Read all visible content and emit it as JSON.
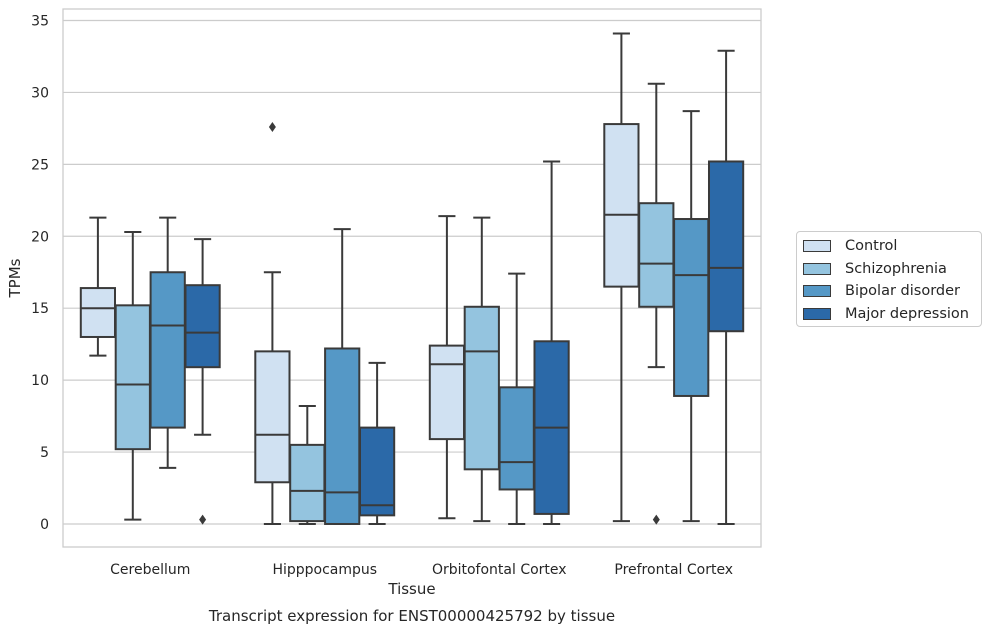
{
  "chart_data": {
    "type": "boxplot",
    "title": "Transcript expression for ENST00000425792 by tissue",
    "xlabel": "Tissue",
    "ylabel": "TPMs",
    "ylim": [
      -1.6,
      35.8
    ],
    "yticks": [
      0,
      5,
      10,
      15,
      20,
      25,
      30,
      35
    ],
    "grid": "horizontal",
    "legend_position": "right",
    "categories": [
      "Cerebellum",
      "Hipppocampus",
      "Orbitofontal Cortex",
      "Prefrontal Cortex"
    ],
    "series": [
      {
        "name": "Control",
        "color": "#d0e1f2",
        "boxes": [
          {
            "whislo": 11.7,
            "q1": 13.0,
            "med": 15.0,
            "q3": 16.4,
            "whishi": 21.3,
            "fliers": []
          },
          {
            "whislo": 0.0,
            "q1": 2.9,
            "med": 6.2,
            "q3": 12.0,
            "whishi": 17.5,
            "fliers": [
              27.6
            ]
          },
          {
            "whislo": 0.4,
            "q1": 5.9,
            "med": 11.1,
            "q3": 12.4,
            "whishi": 21.4,
            "fliers": []
          },
          {
            "whislo": 0.2,
            "q1": 16.5,
            "med": 21.5,
            "q3": 27.8,
            "whishi": 34.1,
            "fliers": []
          }
        ]
      },
      {
        "name": "Schizophrenia",
        "color": "#94c4df",
        "boxes": [
          {
            "whislo": 0.3,
            "q1": 5.2,
            "med": 9.7,
            "q3": 15.2,
            "whishi": 20.3,
            "fliers": []
          },
          {
            "whislo": 0.0,
            "q1": 0.2,
            "med": 2.3,
            "q3": 5.5,
            "whishi": 8.2,
            "fliers": []
          },
          {
            "whislo": 0.2,
            "q1": 3.8,
            "med": 12.0,
            "q3": 15.1,
            "whishi": 21.3,
            "fliers": []
          },
          {
            "whislo": 10.9,
            "q1": 15.1,
            "med": 18.1,
            "q3": 22.3,
            "whishi": 30.6,
            "fliers": [
              0.3
            ]
          }
        ]
      },
      {
        "name": "Bipolar disorder",
        "color": "#5598c6",
        "boxes": [
          {
            "whislo": 3.9,
            "q1": 6.7,
            "med": 13.8,
            "q3": 17.5,
            "whishi": 21.3,
            "fliers": []
          },
          {
            "whislo": 0.0,
            "q1": 0.0,
            "med": 2.2,
            "q3": 12.2,
            "whishi": 20.5,
            "fliers": []
          },
          {
            "whislo": 0.0,
            "q1": 2.4,
            "med": 4.3,
            "q3": 9.5,
            "whishi": 17.4,
            "fliers": []
          },
          {
            "whislo": 0.2,
            "q1": 8.9,
            "med": 17.3,
            "q3": 21.2,
            "whishi": 28.7,
            "fliers": []
          }
        ]
      },
      {
        "name": "Major depression",
        "color": "#2b69a8",
        "boxes": [
          {
            "whislo": 6.2,
            "q1": 10.9,
            "med": 13.3,
            "q3": 16.6,
            "whishi": 19.8,
            "fliers": [
              0.3
            ]
          },
          {
            "whislo": 0.0,
            "q1": 0.6,
            "med": 1.3,
            "q3": 6.7,
            "whishi": 11.2,
            "fliers": []
          },
          {
            "whislo": 0.0,
            "q1": 0.7,
            "med": 6.7,
            "q3": 12.7,
            "whishi": 25.2,
            "fliers": []
          },
          {
            "whislo": 0.0,
            "q1": 13.4,
            "med": 17.8,
            "q3": 25.2,
            "whishi": 32.9,
            "fliers": []
          }
        ]
      }
    ]
  }
}
